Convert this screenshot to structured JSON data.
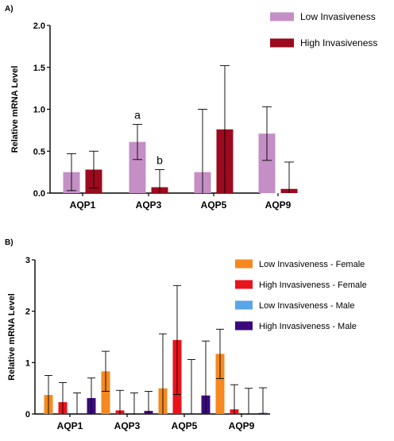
{
  "figure": {
    "panel_a_label": "A)",
    "panel_b_label": "B)"
  },
  "chart_data": [
    {
      "type": "bar",
      "ylabel": "Relative mRNA Level",
      "ylim": [
        0,
        2.0
      ],
      "yticks": [
        "0.0",
        "0.5",
        "1.0",
        "1.5",
        "2.0"
      ],
      "categories": [
        "AQP1",
        "AQP3",
        "AQP5",
        "AQP9"
      ],
      "series": [
        {
          "name": "Low Invasiveness",
          "color": "#c48fc4",
          "values": [
            0.25,
            0.61,
            0.25,
            0.71
          ],
          "error": [
            0.22,
            0.21,
            0.75,
            0.32
          ]
        },
        {
          "name": "High Invasiveness",
          "color": "#9b0a1e",
          "values": [
            0.28,
            0.07,
            0.76,
            0.05
          ],
          "error": [
            0.22,
            0.21,
            0.76,
            0.32
          ]
        }
      ],
      "annotations": [
        {
          "category": "AQP3",
          "series": 0,
          "text": "a"
        },
        {
          "category": "AQP3",
          "series": 1,
          "text": "b"
        }
      ],
      "legend": "top-right"
    },
    {
      "type": "bar",
      "ylabel": "Relative mRNA Level",
      "ylim": [
        0,
        3
      ],
      "yticks": [
        "0",
        "1",
        "2",
        "3"
      ],
      "categories": [
        "AQP1",
        "AQP3",
        "AQP5",
        "AQP9"
      ],
      "series": [
        {
          "name": "Low Invasiveness - Female",
          "color": "#f5891f",
          "values": [
            0.37,
            0.83,
            0.5,
            1.17
          ],
          "error": [
            0.38,
            0.39,
            1.06,
            0.48
          ]
        },
        {
          "name": "High Invasiveness - Female",
          "color": "#e8141c",
          "values": [
            0.23,
            0.07,
            1.44,
            0.09
          ],
          "error": [
            0.38,
            0.39,
            1.06,
            0.48
          ]
        },
        {
          "name": "Low Invasiveness - Male",
          "color": "#5aa5e8",
          "values": [
            0.0,
            0.0,
            0.0,
            0.0
          ],
          "error": [
            0.41,
            0.41,
            1.06,
            0.5
          ]
        },
        {
          "name": "High Invasiveness - Male",
          "color": "#3b0a7a",
          "values": [
            0.31,
            0.06,
            0.36,
            0.02
          ],
          "error": [
            0.39,
            0.38,
            1.06,
            0.49
          ]
        }
      ],
      "legend": "top-right"
    }
  ]
}
